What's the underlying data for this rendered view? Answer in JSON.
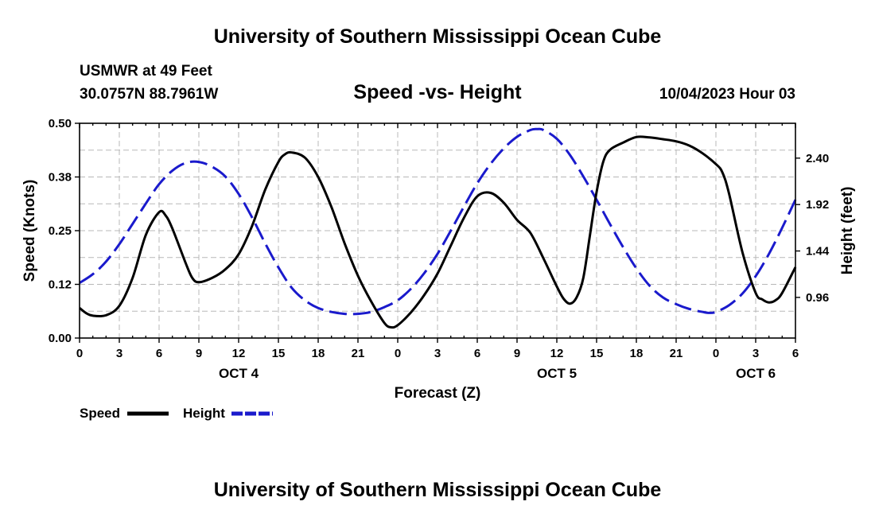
{
  "header": {
    "title": "University of Southern Mississippi Ocean Cube",
    "station": "USMWR at 49 Feet",
    "coords": "30.0757N  88.7961W",
    "subtitle": "Speed -vs- Height",
    "datetime": "10/04/2023 Hour 03",
    "footer_title": "University of Southern Mississippi Ocean Cube"
  },
  "legend": {
    "speed_label": "Speed",
    "height_label": "Height"
  },
  "chart_data": {
    "type": "line",
    "title": "Speed -vs- Height",
    "xlabel": "Forecast (Z)",
    "ylabel": "Speed (Knots)",
    "y2label": "Height (feet)",
    "x_unit": "hours from Oct 4 00Z",
    "xlim": [
      0,
      54
    ],
    "ylim": [
      0,
      0.5
    ],
    "y2lim": [
      0.54,
      2.76
    ],
    "x_ticks": [
      0,
      3,
      6,
      9,
      12,
      15,
      18,
      21,
      24,
      27,
      30,
      33,
      36,
      39,
      42,
      45,
      48,
      51,
      54
    ],
    "x_tick_labels": [
      "0",
      "3",
      "6",
      "9",
      "12",
      "15",
      "18",
      "21",
      "0",
      "3",
      "6",
      "9",
      "12",
      "15",
      "18",
      "21",
      "0",
      "3",
      "6"
    ],
    "y_ticks": [
      0,
      0.125,
      0.25,
      0.375,
      0.5
    ],
    "y_tick_labels": [
      "0.00",
      "0.12",
      "0.25",
      "0.38",
      "0.50"
    ],
    "y2_ticks": [
      0.96,
      1.44,
      1.92,
      2.4
    ],
    "y2_tick_labels": [
      "0.96",
      "1.44",
      "1.92",
      "2.40"
    ],
    "day_labels": [
      {
        "x": 12,
        "label": "OCT 4"
      },
      {
        "x": 36,
        "label": "OCT 5"
      },
      {
        "x": 51,
        "label": "OCT 6"
      }
    ],
    "series": [
      {
        "name": "Speed",
        "axis": "left",
        "color": "#000000",
        "dash": "solid",
        "points": [
          [
            0,
            0.07
          ],
          [
            0.5,
            0.058
          ],
          [
            1,
            0.052
          ],
          [
            2,
            0.053
          ],
          [
            3,
            0.075
          ],
          [
            4,
            0.14
          ],
          [
            5,
            0.24
          ],
          [
            6,
            0.293
          ],
          [
            6.5,
            0.285
          ],
          [
            7,
            0.255
          ],
          [
            8,
            0.175
          ],
          [
            8.5,
            0.14
          ],
          [
            9,
            0.13
          ],
          [
            10,
            0.14
          ],
          [
            11,
            0.16
          ],
          [
            12,
            0.195
          ],
          [
            13,
            0.26
          ],
          [
            14,
            0.345
          ],
          [
            15,
            0.41
          ],
          [
            15.5,
            0.428
          ],
          [
            16,
            0.432
          ],
          [
            17,
            0.42
          ],
          [
            18,
            0.375
          ],
          [
            19,
            0.305
          ],
          [
            20,
            0.22
          ],
          [
            21,
            0.145
          ],
          [
            22,
            0.085
          ],
          [
            23,
            0.035
          ],
          [
            23.5,
            0.025
          ],
          [
            24,
            0.03
          ],
          [
            25,
            0.06
          ],
          [
            26,
            0.1
          ],
          [
            27,
            0.15
          ],
          [
            28,
            0.215
          ],
          [
            29,
            0.28
          ],
          [
            30,
            0.33
          ],
          [
            31,
            0.338
          ],
          [
            32,
            0.315
          ],
          [
            33,
            0.275
          ],
          [
            34,
            0.245
          ],
          [
            35,
            0.185
          ],
          [
            36,
            0.12
          ],
          [
            36.5,
            0.092
          ],
          [
            37,
            0.08
          ],
          [
            37.5,
            0.095
          ],
          [
            38,
            0.14
          ],
          [
            38.5,
            0.24
          ],
          [
            39,
            0.34
          ],
          [
            39.5,
            0.41
          ],
          [
            40,
            0.438
          ],
          [
            41,
            0.455
          ],
          [
            42,
            0.468
          ],
          [
            43,
            0.467
          ],
          [
            44,
            0.463
          ],
          [
            45,
            0.458
          ],
          [
            46,
            0.448
          ],
          [
            47,
            0.43
          ],
          [
            48,
            0.405
          ],
          [
            48.5,
            0.385
          ],
          [
            49,
            0.335
          ],
          [
            50,
            0.2
          ],
          [
            51,
            0.105
          ],
          [
            51.5,
            0.09
          ],
          [
            52,
            0.083
          ],
          [
            52.5,
            0.088
          ],
          [
            53,
            0.105
          ],
          [
            54,
            0.165
          ]
        ]
      },
      {
        "name": "Height",
        "axis": "right",
        "color": "#1a1acc",
        "dash": "dashed",
        "points": [
          [
            0,
            1.11
          ],
          [
            1,
            1.2
          ],
          [
            2,
            1.33
          ],
          [
            3,
            1.51
          ],
          [
            4,
            1.72
          ],
          [
            5,
            1.93
          ],
          [
            6,
            2.13
          ],
          [
            7,
            2.27
          ],
          [
            8,
            2.35
          ],
          [
            9,
            2.36
          ],
          [
            10,
            2.31
          ],
          [
            11,
            2.21
          ],
          [
            12,
            2.03
          ],
          [
            13,
            1.79
          ],
          [
            14,
            1.52
          ],
          [
            15,
            1.27
          ],
          [
            16,
            1.06
          ],
          [
            17,
            0.93
          ],
          [
            18,
            0.85
          ],
          [
            19,
            0.81
          ],
          [
            20,
            0.79
          ],
          [
            21,
            0.79
          ],
          [
            22,
            0.81
          ],
          [
            23,
            0.86
          ],
          [
            24,
            0.93
          ],
          [
            25,
            1.05
          ],
          [
            26,
            1.21
          ],
          [
            27,
            1.41
          ],
          [
            28,
            1.65
          ],
          [
            29,
            1.9
          ],
          [
            30,
            2.14
          ],
          [
            31,
            2.34
          ],
          [
            32,
            2.5
          ],
          [
            33,
            2.62
          ],
          [
            34,
            2.69
          ],
          [
            34.5,
            2.7
          ],
          [
            35,
            2.69
          ],
          [
            36,
            2.6
          ],
          [
            37,
            2.43
          ],
          [
            38,
            2.21
          ],
          [
            39,
            1.97
          ],
          [
            40,
            1.72
          ],
          [
            41,
            1.48
          ],
          [
            42,
            1.26
          ],
          [
            43,
            1.08
          ],
          [
            44,
            0.96
          ],
          [
            45,
            0.89
          ],
          [
            46,
            0.84
          ],
          [
            47,
            0.81
          ],
          [
            47.5,
            0.8
          ],
          [
            48,
            0.81
          ],
          [
            49,
            0.88
          ],
          [
            50,
            1.0
          ],
          [
            51,
            1.18
          ],
          [
            52,
            1.41
          ],
          [
            53,
            1.68
          ],
          [
            54,
            1.97
          ]
        ]
      }
    ]
  }
}
